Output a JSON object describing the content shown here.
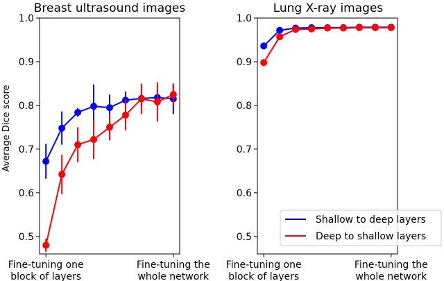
{
  "chart_data": [
    {
      "type": "line",
      "title": "Breast ultrasound images",
      "ylabel": "Average Dice score",
      "xlabel": "",
      "ylim": [
        0.46,
        1.0
      ],
      "yticks": [
        0.5,
        0.6,
        0.7,
        0.8,
        0.9,
        1.0
      ],
      "ytick_labels": [
        "0.5",
        "0.6",
        "0.7",
        "0.8",
        "0.9",
        "1.0"
      ],
      "x": [
        1,
        2,
        3,
        4,
        5,
        6,
        7,
        8,
        9
      ],
      "xlim": [
        0.6,
        9.4
      ],
      "xticks": [
        1,
        9
      ],
      "xtick_labels": [
        [
          "Fine-tuning one",
          "block of layers"
        ],
        [
          "Fine-tuning the",
          "whole network"
        ]
      ],
      "grid": false,
      "series": [
        {
          "name": "Shallow to deep layers",
          "color": "#0000ff",
          "values": [
            0.672,
            0.748,
            0.784,
            0.798,
            0.795,
            0.812,
            0.816,
            0.818,
            0.815
          ],
          "errors": [
            0.04,
            0.038,
            0.01,
            0.05,
            0.03,
            0.02,
            0.02,
            0.02,
            0.035
          ]
        },
        {
          "name": "Deep to shallow layers",
          "color": "#ff0000",
          "values": [
            0.48,
            0.642,
            0.71,
            0.722,
            0.75,
            0.778,
            0.815,
            0.808,
            0.825
          ],
          "errors": [
            0.015,
            0.045,
            0.04,
            0.045,
            0.03,
            0.035,
            0.035,
            0.045,
            0.025
          ]
        }
      ]
    },
    {
      "type": "line",
      "title": "Lung X-ray images",
      "ylabel": "",
      "xlabel": "",
      "ylim": [
        0.46,
        1.0
      ],
      "yticks": [
        0.5,
        0.6,
        0.7,
        0.8,
        0.9,
        1.0
      ],
      "ytick_labels": [
        "0.5",
        "0.6",
        "0.7",
        "0.8",
        "0.9",
        "1.0"
      ],
      "x": [
        1,
        2,
        3,
        4,
        5,
        6,
        7,
        8,
        9
      ],
      "xlim": [
        0.6,
        9.4
      ],
      "xticks": [
        1,
        9
      ],
      "xtick_labels": [
        [
          "Fine-tuning one",
          "block of layers"
        ],
        [
          "Fine-tuning the",
          "whole network"
        ]
      ],
      "grid": false,
      "legend": {
        "placement": "lower-right",
        "entries": [
          "Shallow to deep layers",
          "Deep to shallow layers"
        ]
      },
      "series": [
        {
          "name": "Shallow to deep layers",
          "color": "#0000ff",
          "values": [
            0.936,
            0.972,
            0.977,
            0.978,
            0.978,
            0.978,
            0.979,
            0.979,
            0.979
          ],
          "errors": [
            0.003,
            0.003,
            0.002,
            0.002,
            0.002,
            0.002,
            0.002,
            0.002,
            0.002
          ]
        },
        {
          "name": "Deep to shallow layers",
          "color": "#ff0000",
          "values": [
            0.898,
            0.957,
            0.974,
            0.975,
            0.977,
            0.977,
            0.978,
            0.978,
            0.978
          ],
          "errors": [
            0.006,
            0.004,
            0.003,
            0.002,
            0.002,
            0.002,
            0.002,
            0.002,
            0.002
          ]
        }
      ]
    }
  ]
}
